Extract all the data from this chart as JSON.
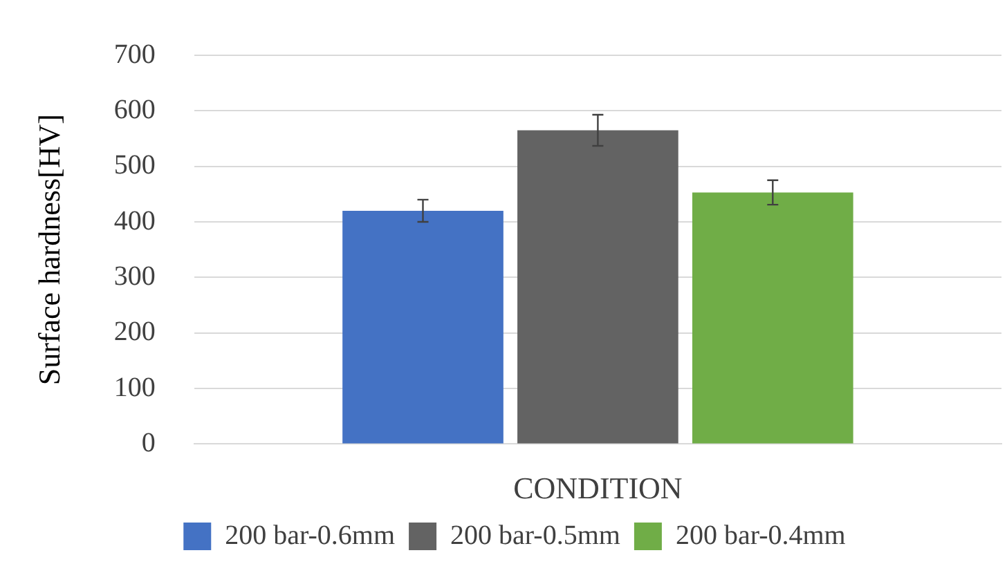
{
  "chart_data": {
    "type": "bar",
    "xlabel": "CONDITION",
    "ylabel": "Surface hardness[HV]",
    "categories": [
      null
    ],
    "series": [
      {
        "name": "200 bar-0.6mm",
        "color": "#4472c4",
        "values": [
          420
        ],
        "errors": [
          20
        ]
      },
      {
        "name": "200 bar-0.5mm",
        "color": "#636363",
        "values": [
          565
        ],
        "errors": [
          28
        ]
      },
      {
        "name": "200 bar-0.4mm",
        "color": "#70ad47",
        "values": [
          453
        ],
        "errors": [
          22
        ]
      }
    ],
    "ylim": [
      0,
      700
    ],
    "yticks": [
      0,
      100,
      200,
      300,
      400,
      500,
      600,
      700
    ],
    "grid": "y",
    "legend": "bottom"
  }
}
